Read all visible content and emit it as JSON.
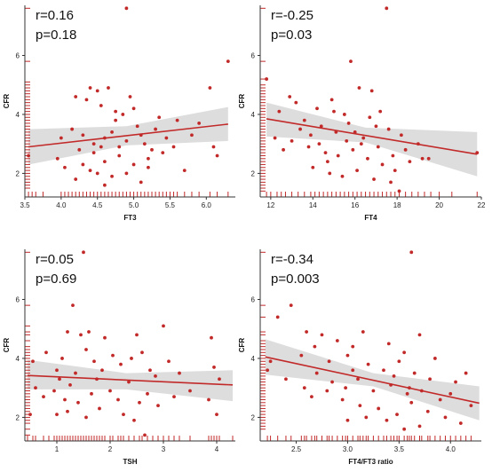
{
  "colors": {
    "points": "#c22a2a",
    "fit_line": "#c22a2a",
    "ci_band": "#d9d9d9",
    "rug": "#c22a2a",
    "axis": "#333333"
  },
  "chart_data": [
    {
      "type": "scatter",
      "xlabel": "FT3",
      "ylabel": "CFR",
      "annotation": {
        "r": "r=0.16",
        "p": "p=0.18"
      },
      "xlim": [
        3.5,
        6.4
      ],
      "ylim": [
        1.2,
        7.7
      ],
      "xticks": [
        "3.5",
        "4.0",
        "4.5",
        "5.0",
        "5.5",
        "6.0"
      ],
      "yticks": [
        "2",
        "4",
        "6"
      ],
      "fit": {
        "x": [
          3.55,
          6.3
        ],
        "y": [
          2.9,
          3.67
        ]
      },
      "ci": {
        "x": [
          3.55,
          4.9,
          6.3
        ],
        "upper": [
          3.5,
          3.6,
          4.25
        ],
        "lower": [
          2.3,
          2.95,
          3.1
        ]
      },
      "points": [
        [
          4.9,
          7.6
        ],
        [
          6.3,
          5.8
        ],
        [
          4.4,
          4.9
        ],
        [
          4.5,
          4.8
        ],
        [
          4.65,
          4.9
        ],
        [
          4.2,
          4.6
        ],
        [
          4.35,
          4.5
        ],
        [
          4.55,
          4.3
        ],
        [
          4.95,
          4.6
        ],
        [
          4.75,
          4.1
        ],
        [
          5.0,
          4.2
        ],
        [
          4.85,
          4.0
        ],
        [
          5.35,
          3.9
        ],
        [
          5.6,
          3.8
        ],
        [
          6.05,
          4.9
        ],
        [
          4.0,
          3.2
        ],
        [
          4.15,
          3.5
        ],
        [
          4.3,
          3.3
        ],
        [
          4.45,
          3.0
        ],
        [
          4.6,
          3.2
        ],
        [
          4.7,
          3.4
        ],
        [
          4.8,
          2.9
        ],
        [
          4.9,
          3.1
        ],
        [
          5.05,
          3.6
        ],
        [
          5.15,
          3.0
        ],
        [
          5.25,
          2.8
        ],
        [
          5.45,
          3.2
        ],
        [
          5.55,
          2.9
        ],
        [
          5.8,
          3.3
        ],
        [
          6.1,
          2.9
        ],
        [
          3.55,
          2.6
        ],
        [
          3.95,
          2.5
        ],
        [
          4.05,
          2.2
        ],
        [
          4.2,
          1.8
        ],
        [
          4.3,
          2.3
        ],
        [
          4.4,
          2.1
        ],
        [
          4.5,
          2.0
        ],
        [
          4.6,
          2.4
        ],
        [
          4.7,
          1.9
        ],
        [
          4.8,
          2.6
        ],
        [
          4.9,
          2.0
        ],
        [
          5.0,
          2.3
        ],
        [
          5.1,
          1.7
        ],
        [
          5.2,
          2.2
        ],
        [
          5.4,
          2.7
        ],
        [
          4.6,
          1.6
        ],
        [
          4.45,
          2.7
        ],
        [
          5.1,
          3.3
        ],
        [
          5.3,
          3.5
        ],
        [
          4.75,
          3.8
        ],
        [
          5.9,
          3.7
        ],
        [
          6.15,
          2.6
        ],
        [
          5.2,
          2.5
        ],
        [
          4.55,
          2.9
        ],
        [
          5.7,
          2.1
        ],
        [
          4.25,
          2.8
        ]
      ],
      "rug_x": [
        3.55,
        3.6,
        3.65,
        3.75,
        4.0,
        4.05,
        4.1,
        4.15,
        4.2,
        4.25,
        4.3,
        4.35,
        4.4,
        4.45,
        4.5,
        4.55,
        4.6,
        4.65,
        4.7,
        4.75,
        4.8,
        4.85,
        4.9,
        4.95,
        5.0,
        5.05,
        5.1,
        5.15,
        5.2,
        5.25,
        5.3,
        5.35,
        5.4,
        5.45,
        5.5,
        5.55,
        5.6,
        5.7,
        5.8,
        5.9,
        6.05,
        6.15,
        6.3
      ],
      "rug_y": [
        1.5,
        1.6,
        1.7,
        1.8,
        1.9,
        2.0,
        2.1,
        2.2,
        2.3,
        2.4,
        2.5,
        2.6,
        2.7,
        2.8,
        2.9,
        3.0,
        3.1,
        3.2,
        3.3,
        3.4,
        3.5,
        3.6,
        3.7,
        3.8,
        3.9,
        4.0,
        4.1,
        4.2,
        4.3,
        4.4,
        4.5,
        4.6,
        4.7,
        4.8,
        4.9,
        5.0,
        5.1,
        5.8,
        7.6
      ]
    },
    {
      "type": "scatter",
      "xlabel": "FT4",
      "ylabel": "CFR",
      "annotation": {
        "r": "r=-0.25",
        "p": "p=0.03"
      },
      "xlim": [
        11.5,
        22
      ],
      "ylim": [
        1.2,
        7.7
      ],
      "xticks": [
        "12",
        "14",
        "16",
        "18",
        "20",
        "22"
      ],
      "yticks": [
        "2",
        "4",
        "6"
      ],
      "fit": {
        "x": [
          11.8,
          21.8
        ],
        "y": [
          3.85,
          2.65
        ]
      },
      "ci": {
        "x": [
          11.8,
          16.5,
          21.8
        ],
        "upper": [
          4.4,
          3.55,
          3.4
        ],
        "lower": [
          3.25,
          3.05,
          1.9
        ]
      },
      "points": [
        [
          17.5,
          7.6
        ],
        [
          15.8,
          5.8
        ],
        [
          11.8,
          5.2
        ],
        [
          12.9,
          4.6
        ],
        [
          13.2,
          4.4
        ],
        [
          14.2,
          4.2
        ],
        [
          14.9,
          4.5
        ],
        [
          15.5,
          4.0
        ],
        [
          16.2,
          4.9
        ],
        [
          16.8,
          4.8
        ],
        [
          17.2,
          4.1
        ],
        [
          12.4,
          4.1
        ],
        [
          13.6,
          3.8
        ],
        [
          14.4,
          3.6
        ],
        [
          15.1,
          3.4
        ],
        [
          15.7,
          3.7
        ],
        [
          16.4,
          3.2
        ],
        [
          17.0,
          3.6
        ],
        [
          17.6,
          3.5
        ],
        [
          18.2,
          3.3
        ],
        [
          19.0,
          3.0
        ],
        [
          19.5,
          2.5
        ],
        [
          21.8,
          2.7
        ],
        [
          12.2,
          3.2
        ],
        [
          13.0,
          3.1
        ],
        [
          13.8,
          2.9
        ],
        [
          14.6,
          2.7
        ],
        [
          15.2,
          2.6
        ],
        [
          15.9,
          2.8
        ],
        [
          16.6,
          2.5
        ],
        [
          17.3,
          2.3
        ],
        [
          17.9,
          2.1
        ],
        [
          18.6,
          2.4
        ],
        [
          14.0,
          2.2
        ],
        [
          14.8,
          2.0
        ],
        [
          15.4,
          1.9
        ],
        [
          16.1,
          2.1
        ],
        [
          16.9,
          1.8
        ],
        [
          17.7,
          1.7
        ],
        [
          18.1,
          1.4
        ],
        [
          13.4,
          3.5
        ],
        [
          14.3,
          3.0
        ],
        [
          15.6,
          3.1
        ],
        [
          16.3,
          3.0
        ],
        [
          17.1,
          2.9
        ],
        [
          18.4,
          2.8
        ],
        [
          19.2,
          2.5
        ],
        [
          12.6,
          2.8
        ],
        [
          13.9,
          3.3
        ],
        [
          16.7,
          3.9
        ],
        [
          15.0,
          4.1
        ],
        [
          17.8,
          2.6
        ],
        [
          14.7,
          2.4
        ],
        [
          16.0,
          3.4
        ]
      ],
      "rug_x": [
        11.8,
        12.0,
        12.3,
        12.5,
        12.7,
        13.0,
        13.3,
        13.6,
        13.9,
        14.1,
        14.3,
        14.5,
        14.7,
        14.9,
        15.1,
        15.3,
        15.5,
        15.7,
        15.9,
        16.1,
        16.3,
        16.5,
        16.7,
        16.9,
        17.1,
        17.3,
        17.5,
        17.7,
        17.9,
        18.1,
        18.4,
        18.7,
        19.0,
        19.3,
        19.6,
        20.0,
        20.6,
        21.8
      ],
      "rug_y": [
        1.4,
        1.5,
        1.6,
        1.7,
        1.8,
        1.9,
        2.0,
        2.1,
        2.2,
        2.3,
        2.4,
        2.5,
        2.6,
        2.7,
        2.8,
        2.9,
        3.0,
        3.1,
        3.2,
        3.3,
        3.4,
        3.5,
        3.6,
        3.7,
        3.8,
        3.9,
        4.0,
        4.1,
        4.2,
        4.3,
        4.4,
        4.5,
        4.6,
        4.7,
        4.8,
        4.9,
        5.0,
        5.2,
        5.8,
        7.6
      ]
    },
    {
      "type": "scatter",
      "xlabel": "TSH",
      "ylabel": "CFR",
      "annotation": {
        "r": "r=0.05",
        "p": "p=0.69"
      },
      "xlim": [
        0.4,
        4.35
      ],
      "ylim": [
        1.2,
        7.7
      ],
      "xticks": [
        "1",
        "2",
        "3",
        "4"
      ],
      "yticks": [
        "2",
        "4",
        "6"
      ],
      "fit": {
        "x": [
          0.45,
          4.3
        ],
        "y": [
          3.42,
          3.1
        ]
      },
      "ci": {
        "x": [
          0.45,
          2.3,
          4.3
        ],
        "upper": [
          3.95,
          3.5,
          3.6
        ],
        "lower": [
          2.95,
          2.95,
          2.55
        ]
      },
      "points": [
        [
          1.5,
          7.6
        ],
        [
          1.3,
          5.8
        ],
        [
          1.2,
          4.9
        ],
        [
          1.45,
          4.8
        ],
        [
          1.6,
          4.9
        ],
        [
          1.9,
          4.7
        ],
        [
          2.5,
          4.8
        ],
        [
          3.0,
          5.1
        ],
        [
          3.9,
          4.7
        ],
        [
          0.55,
          3.9
        ],
        [
          0.8,
          4.2
        ],
        [
          1.0,
          3.6
        ],
        [
          1.1,
          4.0
        ],
        [
          1.35,
          3.5
        ],
        [
          1.55,
          4.3
        ],
        [
          1.7,
          3.9
        ],
        [
          1.85,
          3.6
        ],
        [
          2.05,
          4.1
        ],
        [
          2.2,
          3.8
        ],
        [
          2.4,
          4.0
        ],
        [
          2.6,
          4.2
        ],
        [
          2.75,
          3.6
        ],
        [
          3.1,
          3.9
        ],
        [
          3.3,
          3.5
        ],
        [
          3.95,
          3.7
        ],
        [
          4.05,
          3.3
        ],
        [
          0.6,
          3.0
        ],
        [
          0.75,
          2.7
        ],
        [
          0.95,
          2.9
        ],
        [
          1.15,
          2.6
        ],
        [
          1.25,
          3.1
        ],
        [
          1.4,
          2.5
        ],
        [
          1.65,
          2.8
        ],
        [
          1.8,
          2.3
        ],
        [
          2.0,
          2.9
        ],
        [
          2.15,
          2.6
        ],
        [
          2.35,
          3.2
        ],
        [
          2.55,
          2.5
        ],
        [
          2.7,
          2.8
        ],
        [
          2.9,
          2.4
        ],
        [
          3.2,
          2.7
        ],
        [
          3.5,
          2.9
        ],
        [
          3.85,
          2.6
        ],
        [
          4.0,
          2.1
        ],
        [
          1.0,
          2.1
        ],
        [
          1.55,
          2.0
        ],
        [
          2.45,
          1.9
        ],
        [
          2.65,
          1.4
        ],
        [
          1.2,
          2.2
        ],
        [
          2.25,
          2.1
        ],
        [
          1.75,
          3.3
        ],
        [
          2.85,
          3.4
        ],
        [
          0.5,
          2.1
        ],
        [
          1.05,
          3.3
        ]
      ],
      "rug_x": [
        0.45,
        0.55,
        0.6,
        0.75,
        0.85,
        0.95,
        1.0,
        1.05,
        1.1,
        1.15,
        1.2,
        1.25,
        1.3,
        1.35,
        1.4,
        1.45,
        1.5,
        1.55,
        1.6,
        1.65,
        1.7,
        1.75,
        1.8,
        1.85,
        1.9,
        2.0,
        2.05,
        2.15,
        2.2,
        2.25,
        2.35,
        2.45,
        2.55,
        2.6,
        2.7,
        2.8,
        2.9,
        3.0,
        3.1,
        3.2,
        3.3,
        3.5,
        3.85,
        3.9,
        3.95,
        4.0,
        4.05,
        4.3
      ],
      "rug_y": [
        1.4,
        1.6,
        1.8,
        1.9,
        2.0,
        2.1,
        2.2,
        2.3,
        2.4,
        2.5,
        2.6,
        2.7,
        2.8,
        2.9,
        3.0,
        3.1,
        3.2,
        3.3,
        3.4,
        3.5,
        3.6,
        3.7,
        3.8,
        3.9,
        4.0,
        4.1,
        4.2,
        4.3,
        4.4,
        4.6,
        4.8,
        4.9,
        5.1,
        5.8,
        7.6
      ]
    },
    {
      "type": "scatter",
      "xlabel": "FT4/FT3 ratio",
      "ylabel": "CFR",
      "annotation": {
        "r": "r=-0.34",
        "p": "p=0.003"
      },
      "xlim": [
        2.15,
        4.3
      ],
      "ylim": [
        1.2,
        7.7
      ],
      "xticks": [
        "2.5",
        "3.0",
        "3.5",
        "4.0"
      ],
      "yticks": [
        "2",
        "4",
        "6"
      ],
      "fit": {
        "x": [
          2.2,
          4.28
        ],
        "y": [
          4.05,
          2.48
        ]
      },
      "ci": {
        "x": [
          2.2,
          3.25,
          4.28
        ],
        "upper": [
          4.65,
          3.5,
          3.05
        ],
        "lower": [
          3.45,
          3.05,
          1.9
        ]
      },
      "points": [
        [
          3.62,
          7.6
        ],
        [
          2.45,
          5.8
        ],
        [
          2.32,
          5.4
        ],
        [
          2.6,
          4.9
        ],
        [
          2.75,
          4.8
        ],
        [
          2.9,
          4.6
        ],
        [
          3.05,
          4.4
        ],
        [
          3.15,
          4.9
        ],
        [
          3.4,
          4.5
        ],
        [
          3.55,
          4.2
        ],
        [
          3.7,
          4.8
        ],
        [
          3.85,
          4.0
        ],
        [
          2.55,
          4.1
        ],
        [
          2.68,
          4.4
        ],
        [
          2.82,
          3.9
        ],
        [
          3.0,
          4.1
        ],
        [
          3.2,
          3.8
        ],
        [
          3.35,
          3.6
        ],
        [
          3.5,
          3.9
        ],
        [
          3.65,
          3.5
        ],
        [
          3.8,
          3.3
        ],
        [
          4.05,
          3.2
        ],
        [
          4.15,
          3.5
        ],
        [
          2.4,
          3.3
        ],
        [
          2.58,
          3.0
        ],
        [
          2.7,
          3.5
        ],
        [
          2.85,
          3.2
        ],
        [
          2.98,
          3.0
        ],
        [
          3.1,
          3.3
        ],
        [
          3.25,
          2.9
        ],
        [
          3.42,
          3.1
        ],
        [
          3.58,
          2.8
        ],
        [
          3.72,
          2.9
        ],
        [
          3.9,
          2.6
        ],
        [
          4.0,
          2.8
        ],
        [
          4.2,
          2.4
        ],
        [
          2.25,
          3.9
        ],
        [
          2.65,
          2.7
        ],
        [
          2.95,
          2.6
        ],
        [
          3.12,
          2.4
        ],
        [
          3.3,
          2.3
        ],
        [
          3.48,
          2.1
        ],
        [
          3.62,
          2.5
        ],
        [
          3.78,
          2.2
        ],
        [
          3.95,
          2.0
        ],
        [
          4.1,
          1.8
        ],
        [
          3.18,
          2.0
        ],
        [
          3.38,
          1.9
        ],
        [
          3.55,
          1.6
        ],
        [
          3.7,
          1.7
        ],
        [
          2.22,
          3.6
        ],
        [
          3.05,
          3.6
        ],
        [
          3.45,
          3.4
        ],
        [
          2.8,
          2.9
        ],
        [
          3.6,
          3.0
        ],
        [
          3.0,
          1.9
        ]
      ],
      "rug_x": [
        2.22,
        2.25,
        2.32,
        2.4,
        2.45,
        2.55,
        2.58,
        2.6,
        2.65,
        2.68,
        2.7,
        2.75,
        2.8,
        2.82,
        2.85,
        2.9,
        2.95,
        2.98,
        3.0,
        3.05,
        3.1,
        3.12,
        3.15,
        3.18,
        3.2,
        3.25,
        3.3,
        3.35,
        3.38,
        3.42,
        3.45,
        3.48,
        3.5,
        3.55,
        3.58,
        3.6,
        3.62,
        3.65,
        3.7,
        3.72,
        3.78,
        3.8,
        3.85,
        3.9,
        3.95,
        4.0,
        4.05,
        4.1,
        4.15,
        4.2
      ],
      "rug_y": [
        1.6,
        1.7,
        1.8,
        1.9,
        2.0,
        2.1,
        2.2,
        2.3,
        2.4,
        2.5,
        2.6,
        2.7,
        2.8,
        2.9,
        3.0,
        3.1,
        3.2,
        3.3,
        3.4,
        3.5,
        3.6,
        3.7,
        3.8,
        3.9,
        4.0,
        4.1,
        4.2,
        4.3,
        4.4,
        4.5,
        4.6,
        4.8,
        4.9,
        5.4,
        5.8,
        7.6
      ]
    }
  ]
}
